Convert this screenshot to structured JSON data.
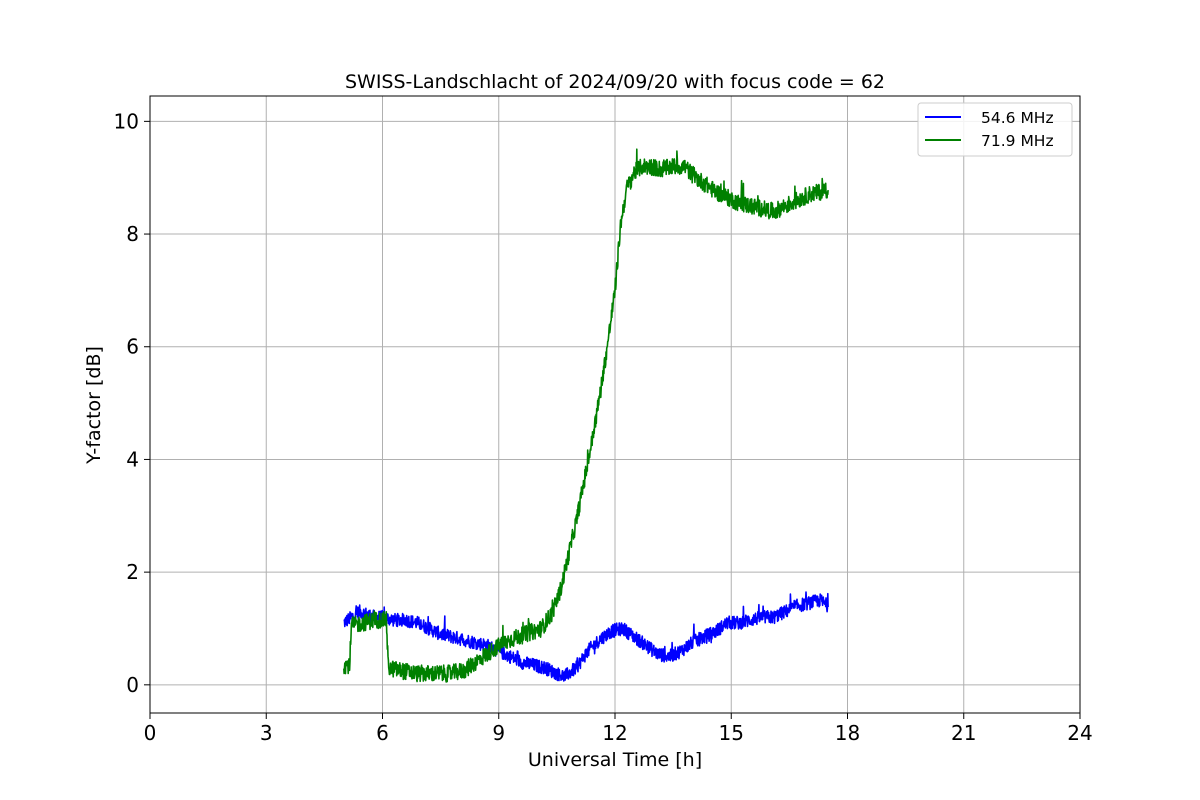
{
  "chart_data": {
    "type": "line",
    "title": "SWISS-Landschlacht of 2024/09/20 with focus code = 62",
    "xlabel": "Universal Time [h]",
    "ylabel": "Y-factor [dB]",
    "xlim": [
      0,
      24
    ],
    "ylim": [
      -0.5,
      10.45
    ],
    "xticks": [
      0,
      3,
      6,
      9,
      12,
      15,
      18,
      21,
      24
    ],
    "yticks": [
      0,
      2,
      4,
      6,
      8,
      10
    ],
    "grid": true,
    "legend_position": "top-right",
    "series": [
      {
        "name": "54.6 MHz",
        "color": "#0000ff",
        "x": [
          5.0,
          5.2,
          5.4,
          5.6,
          5.8,
          6.0,
          6.3,
          6.6,
          6.9,
          7.2,
          7.5,
          7.8,
          8.1,
          8.4,
          8.7,
          9.0,
          9.3,
          9.6,
          9.9,
          10.2,
          10.5,
          10.7,
          11.0,
          11.3,
          11.6,
          11.9,
          12.2,
          12.5,
          12.8,
          13.1,
          13.4,
          13.7,
          14.0,
          14.3,
          14.6,
          14.9,
          15.2,
          15.5,
          15.8,
          16.1,
          16.4,
          16.7,
          17.0,
          17.3,
          17.5
        ],
        "y": [
          1.1,
          1.2,
          1.3,
          1.25,
          1.2,
          1.2,
          1.15,
          1.15,
          1.1,
          1.0,
          0.9,
          0.85,
          0.8,
          0.75,
          0.7,
          0.6,
          0.5,
          0.4,
          0.35,
          0.3,
          0.2,
          0.15,
          0.3,
          0.6,
          0.8,
          0.95,
          1.0,
          0.85,
          0.7,
          0.55,
          0.5,
          0.6,
          0.75,
          0.85,
          0.95,
          1.1,
          1.1,
          1.15,
          1.2,
          1.2,
          1.3,
          1.4,
          1.45,
          1.5,
          1.4
        ],
        "noise": 0.12
      },
      {
        "name": "71.9 MHz",
        "color": "#008000",
        "x": [
          5.0,
          5.15,
          5.2,
          5.5,
          5.8,
          6.1,
          6.15,
          6.5,
          6.9,
          7.3,
          7.7,
          8.1,
          8.5,
          8.9,
          9.3,
          9.7,
          10.1,
          10.4,
          10.6,
          10.8,
          11.0,
          11.2,
          11.4,
          11.6,
          11.8,
          12.0,
          12.15,
          12.3,
          12.5,
          12.7,
          12.9,
          13.2,
          13.5,
          13.8,
          14.0,
          14.3,
          14.6,
          14.9,
          15.2,
          15.5,
          15.8,
          16.1,
          16.4,
          16.7,
          17.0,
          17.3,
          17.5
        ],
        "y": [
          0.35,
          0.35,
          1.05,
          1.1,
          1.15,
          1.15,
          0.3,
          0.25,
          0.2,
          0.2,
          0.2,
          0.25,
          0.45,
          0.65,
          0.8,
          0.9,
          1.0,
          1.3,
          1.7,
          2.3,
          2.9,
          3.6,
          4.3,
          5.1,
          6.0,
          7.0,
          8.2,
          8.8,
          9.1,
          9.2,
          9.2,
          9.15,
          9.2,
          9.2,
          9.05,
          8.9,
          8.75,
          8.65,
          8.55,
          8.5,
          8.45,
          8.4,
          8.5,
          8.6,
          8.7,
          8.75,
          8.8
        ],
        "noise": 0.15
      }
    ]
  }
}
